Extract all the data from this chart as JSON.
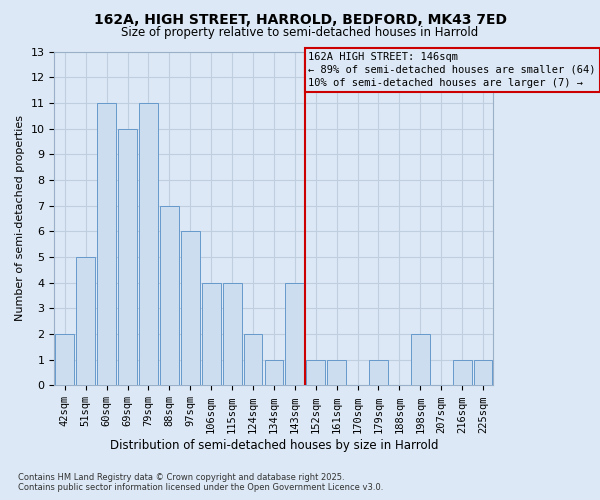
{
  "title1": "162A, HIGH STREET, HARROLD, BEDFORD, MK43 7ED",
  "title2": "Size of property relative to semi-detached houses in Harrold",
  "xlabel": "Distribution of semi-detached houses by size in Harrold",
  "ylabel": "Number of semi-detached properties",
  "bar_labels": [
    "42sqm",
    "51sqm",
    "60sqm",
    "69sqm",
    "79sqm",
    "88sqm",
    "97sqm",
    "106sqm",
    "115sqm",
    "124sqm",
    "134sqm",
    "143sqm",
    "152sqm",
    "161sqm",
    "170sqm",
    "179sqm",
    "188sqm",
    "198sqm",
    "207sqm",
    "216sqm",
    "225sqm"
  ],
  "bar_values": [
    2,
    5,
    11,
    10,
    11,
    7,
    6,
    4,
    4,
    2,
    1,
    4,
    1,
    1,
    0,
    1,
    0,
    2,
    0,
    1,
    1
  ],
  "bar_color": "#ccddf0",
  "bar_edge_color": "#6699cc",
  "background_color": "#dce8f5",
  "grid_color": "#c0cfe0",
  "annotation_line_color": "#cc0000",
  "annotation_box_edge_color": "#cc0000",
  "annotation_box_text_line1": "162A HIGH STREET: 146sqm",
  "annotation_box_text_line2": "← 89% of semi-detached houses are smaller (64)",
  "annotation_box_text_line3": "10% of semi-detached houses are larger (7) →",
  "footnote1": "Contains HM Land Registry data © Crown copyright and database right 2025.",
  "footnote2": "Contains public sector information licensed under the Open Government Licence v3.0.",
  "red_line_x": 11.5,
  "ylim": [
    0,
    13
  ],
  "yticks": [
    0,
    1,
    2,
    3,
    4,
    5,
    6,
    7,
    8,
    9,
    10,
    11,
    12,
    13
  ]
}
